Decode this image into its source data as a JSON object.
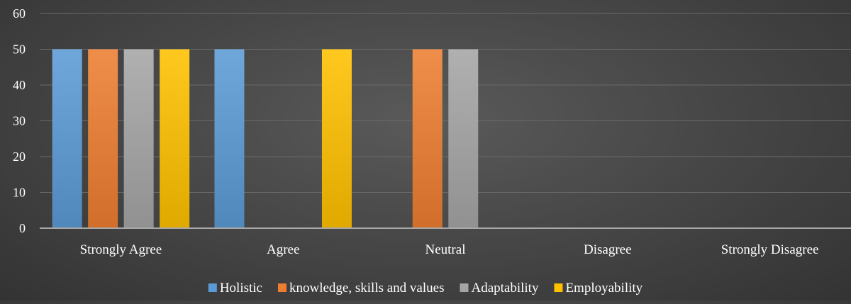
{
  "chart_data": {
    "type": "bar",
    "title": "",
    "xlabel": "",
    "ylabel": "",
    "categories": [
      "Strongly Agree",
      "Agree",
      "Neutral",
      "Disagree",
      "Strongly Disagree"
    ],
    "series": [
      {
        "name": "Holistic",
        "color": "#5b9bd5",
        "values": [
          50,
          50,
          0,
          0,
          0
        ]
      },
      {
        "name": "knowledge, skills and values",
        "color": "#ed7d31",
        "values": [
          50,
          0,
          50,
          0,
          0
        ]
      },
      {
        "name": "Adaptability",
        "color": "#a5a5a5",
        "values": [
          50,
          0,
          50,
          0,
          0
        ]
      },
      {
        "name": "Employability",
        "color": "#ffc000",
        "values": [
          50,
          50,
          0,
          0,
          0
        ]
      }
    ],
    "ylim": [
      0,
      60
    ],
    "yticks": [
      0,
      10,
      20,
      30,
      40,
      50,
      60
    ],
    "grid": true,
    "legend_position": "bottom"
  }
}
